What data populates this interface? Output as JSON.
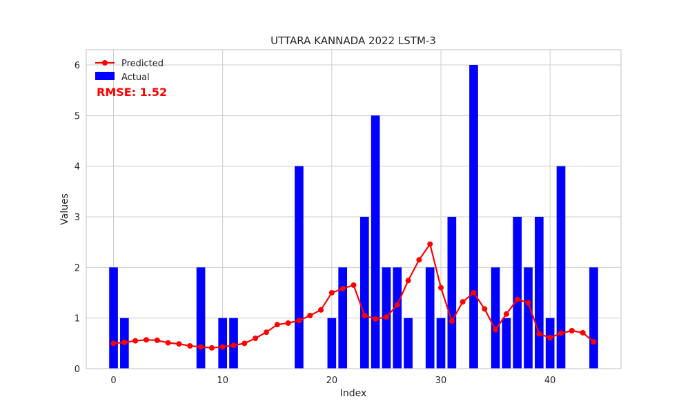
{
  "chart_data": {
    "type": "bar",
    "title": "UTTARA KANNADA 2022 LSTM-3",
    "xlabel": "Index",
    "ylabel": "Values",
    "xlim": [
      -2.5,
      46.5
    ],
    "ylim": [
      0,
      6.3
    ],
    "xticks": [
      0,
      10,
      20,
      30,
      40
    ],
    "yticks": [
      0,
      1,
      2,
      3,
      4,
      5,
      6
    ],
    "grid": true,
    "legend_position": "top-left",
    "annotation": "RMSE: 1.52",
    "annotation_color": "#ff0000",
    "x": [
      0,
      1,
      2,
      3,
      4,
      5,
      6,
      7,
      8,
      9,
      10,
      11,
      12,
      13,
      14,
      15,
      16,
      17,
      18,
      19,
      20,
      21,
      22,
      23,
      24,
      25,
      26,
      27,
      28,
      29,
      30,
      31,
      32,
      33,
      34,
      35,
      36,
      37,
      38,
      39,
      40,
      41,
      42,
      43,
      44
    ],
    "series": [
      {
        "name": "Actual",
        "kind": "bar",
        "color": "#0000ff",
        "values": [
          2,
          1,
          0,
          0,
          0,
          0,
          0,
          0,
          2,
          0,
          1,
          1,
          0,
          0,
          0,
          0,
          0,
          4,
          0,
          0,
          1,
          2,
          0,
          3,
          5,
          2,
          2,
          1,
          0,
          2,
          1,
          3,
          0,
          6,
          0,
          2,
          1,
          3,
          2,
          3,
          1,
          4,
          0,
          0,
          2
        ]
      },
      {
        "name": "Predicted",
        "kind": "line",
        "color": "#ff0000",
        "values": [
          0.5,
          0.52,
          0.55,
          0.57,
          0.56,
          0.51,
          0.49,
          0.45,
          0.43,
          0.41,
          0.43,
          0.46,
          0.5,
          0.6,
          0.72,
          0.87,
          0.9,
          0.95,
          1.05,
          1.16,
          1.5,
          1.58,
          1.65,
          1.05,
          0.98,
          1.02,
          1.26,
          1.74,
          2.15,
          2.46,
          1.6,
          0.94,
          1.32,
          1.5,
          1.18,
          0.77,
          1.08,
          1.37,
          1.3,
          0.69,
          0.61,
          0.7,
          0.75,
          0.71,
          0.53
        ]
      }
    ]
  }
}
